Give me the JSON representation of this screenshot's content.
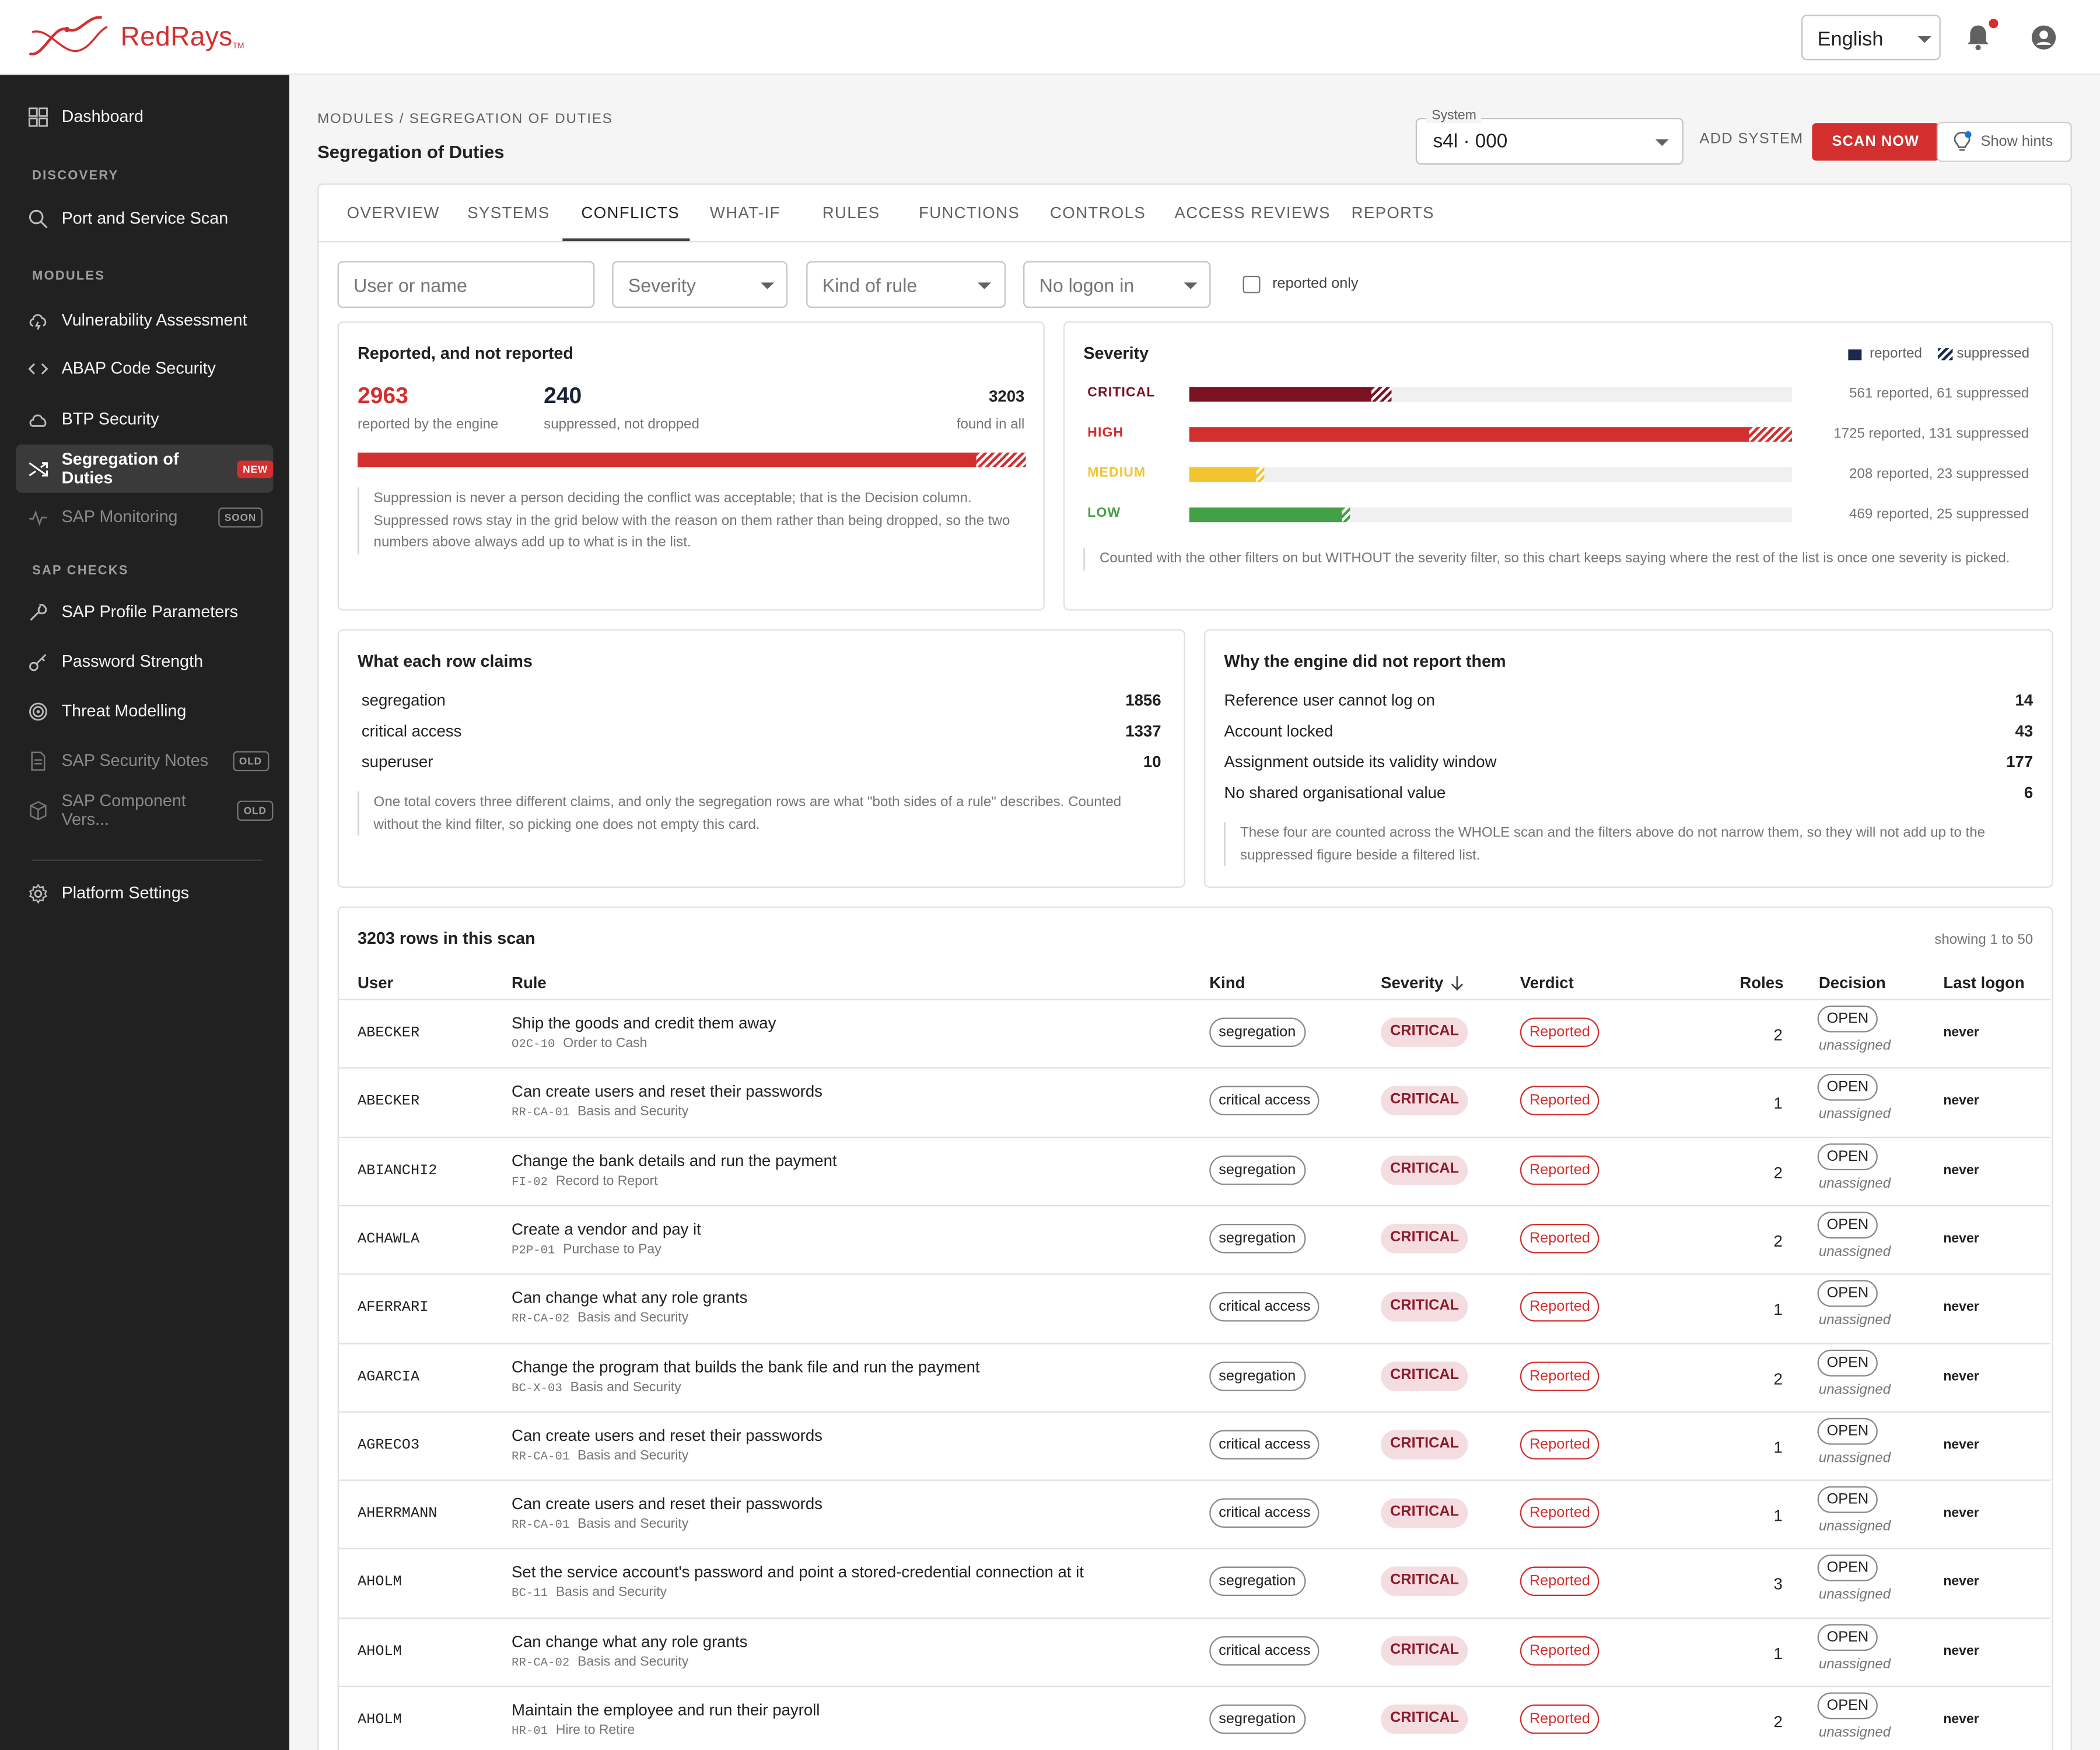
{
  "app": {
    "brand": "RedRays",
    "brand_tm": "TM",
    "language": "English"
  },
  "sidebar": {
    "items": [
      {
        "label": "Dashboard",
        "icon": "dashboard-icon"
      },
      {
        "label": "Port and Service Scan",
        "icon": "search-icon"
      },
      {
        "label": "Vulnerability Assessment",
        "icon": "cloud-bolt-icon"
      },
      {
        "label": "ABAP Code Security",
        "icon": "code-icon"
      },
      {
        "label": "BTP Security",
        "icon": "cloud-icon"
      },
      {
        "label": "Segregation of Duties",
        "icon": "shuffle-icon",
        "badge": "NEW"
      },
      {
        "label": "SAP Monitoring",
        "icon": "pulse-icon",
        "badge": "SOON"
      },
      {
        "label": "SAP Profile Parameters",
        "icon": "wrench-icon"
      },
      {
        "label": "Password Strength",
        "icon": "key-icon"
      },
      {
        "label": "Threat Modelling",
        "icon": "target-icon"
      },
      {
        "label": "SAP Security Notes",
        "icon": "document-icon",
        "badge": "OLD"
      },
      {
        "label": "SAP Component Vers...",
        "icon": "cube-icon",
        "badge": "OLD"
      },
      {
        "label": "Platform Settings",
        "icon": "gear-icon"
      }
    ],
    "sections": [
      "DISCOVERY",
      "MODULES",
      "SAP CHECKS"
    ]
  },
  "header": {
    "breadcrumb": "MODULES / SEGREGATION OF DUTIES",
    "title": "Segregation of Duties",
    "system_label": "System",
    "system_value": "s4l · 000",
    "add_system": "ADD SYSTEM",
    "scan_now": "SCAN NOW",
    "show_hints": "Show hints"
  },
  "tabs": [
    "OVERVIEW",
    "SYSTEMS",
    "CONFLICTS",
    "WHAT-IF",
    "RULES",
    "FUNCTIONS",
    "CONTROLS",
    "ACCESS REVIEWS",
    "REPORTS"
  ],
  "filters": {
    "user_placeholder": "User or name",
    "severity": "Severity",
    "kind": "Kind of rule",
    "logon": "No logon in",
    "reported_only": "reported only"
  },
  "summary": {
    "title": "Reported, and not reported",
    "reported": "2963",
    "reported_label": "reported by the engine",
    "suppressed": "240",
    "suppressed_label": "suppressed, not dropped",
    "total": "3203",
    "total_label": "found in all",
    "reported_fraction": 0.925,
    "note": "Suppression is never a person deciding the conflict was acceptable; that is the Decision column. Suppressed rows stay in the grid below with the reason on them rather than being dropped, so the two numbers above always add up to what is in the list."
  },
  "severity": {
    "title": "Severity",
    "legend_reported": "reported",
    "legend_suppressed": "suppressed",
    "rows": [
      {
        "label": "CRITICAL",
        "reported": 561,
        "suppressed": 61,
        "text": "561 reported, 61 suppressed",
        "color": "#7b1222"
      },
      {
        "label": "HIGH",
        "reported": 1725,
        "suppressed": 131,
        "text": "1725 reported, 131 suppressed",
        "color": "#d32f2f"
      },
      {
        "label": "MEDIUM",
        "reported": 208,
        "suppressed": 23,
        "text": "208 reported, 23 suppressed",
        "color": "#f4c430"
      },
      {
        "label": "LOW",
        "reported": 469,
        "suppressed": 25,
        "text": "469 reported, 25 suppressed",
        "color": "#43a047"
      }
    ],
    "note": "Counted with the other filters on but WITHOUT the severity filter, so this chart keeps saying where the rest of the list is once one severity is picked."
  },
  "claims": {
    "title": "What each row claims",
    "rows": [
      {
        "k": "segregation",
        "v": "1856"
      },
      {
        "k": "critical access",
        "v": "1337"
      },
      {
        "k": "superuser",
        "v": "10"
      }
    ],
    "note": "One total covers three different claims, and only the segregation rows are what \"both sides of a rule\" describes. Counted without the kind filter, so picking one does not empty this card."
  },
  "why": {
    "title": "Why the engine did not report them",
    "rows": [
      {
        "k": "Reference user cannot log on",
        "v": "14"
      },
      {
        "k": "Account locked",
        "v": "43"
      },
      {
        "k": "Assignment outside its validity window",
        "v": "177"
      },
      {
        "k": "No shared organisational value",
        "v": "6"
      }
    ],
    "note": "These four are counted across the WHOLE scan and the filters above do not narrow them, so they will not add up to the suppressed figure beside a filtered list."
  },
  "table": {
    "title": "3203 rows in this scan",
    "paging": "showing 1 to 50",
    "headers": [
      "User",
      "Rule",
      "Kind",
      "Severity",
      "Verdict",
      "Roles",
      "Decision",
      "Last logon"
    ],
    "rows": [
      {
        "user": "ABECKER",
        "rule": "Ship the goods and credit them away",
        "code": "O2C-10",
        "area": "Order to Cash",
        "kind": "segregation",
        "sev": "CRITICAL",
        "verdict": "Reported",
        "roles": "2",
        "decision": "OPEN",
        "assignee": "unassigned",
        "logon": "never"
      },
      {
        "user": "ABECKER",
        "rule": "Can create users and reset their passwords",
        "code": "RR-CA-01",
        "area": "Basis and Security",
        "kind": "critical access",
        "sev": "CRITICAL",
        "verdict": "Reported",
        "roles": "1",
        "decision": "OPEN",
        "assignee": "unassigned",
        "logon": "never"
      },
      {
        "user": "ABIANCHI2",
        "rule": "Change the bank details and run the payment",
        "code": "FI-02",
        "area": "Record to Report",
        "kind": "segregation",
        "sev": "CRITICAL",
        "verdict": "Reported",
        "roles": "2",
        "decision": "OPEN",
        "assignee": "unassigned",
        "logon": "never"
      },
      {
        "user": "ACHAWLA",
        "rule": "Create a vendor and pay it",
        "code": "P2P-01",
        "area": "Purchase to Pay",
        "kind": "segregation",
        "sev": "CRITICAL",
        "verdict": "Reported",
        "roles": "2",
        "decision": "OPEN",
        "assignee": "unassigned",
        "logon": "never"
      },
      {
        "user": "AFERRARI",
        "rule": "Can change what any role grants",
        "code": "RR-CA-02",
        "area": "Basis and Security",
        "kind": "critical access",
        "sev": "CRITICAL",
        "verdict": "Reported",
        "roles": "1",
        "decision": "OPEN",
        "assignee": "unassigned",
        "logon": "never"
      },
      {
        "user": "AGARCIA",
        "rule": "Change the program that builds the bank file and run the payment",
        "code": "BC-X-03",
        "area": "Basis and Security",
        "kind": "segregation",
        "sev": "CRITICAL",
        "verdict": "Reported",
        "roles": "2",
        "decision": "OPEN",
        "assignee": "unassigned",
        "logon": "never"
      },
      {
        "user": "AGRECO3",
        "rule": "Can create users and reset their passwords",
        "code": "RR-CA-01",
        "area": "Basis and Security",
        "kind": "critical access",
        "sev": "CRITICAL",
        "verdict": "Reported",
        "roles": "1",
        "decision": "OPEN",
        "assignee": "unassigned",
        "logon": "never"
      },
      {
        "user": "AHERRMANN",
        "rule": "Can create users and reset their passwords",
        "code": "RR-CA-01",
        "area": "Basis and Security",
        "kind": "critical access",
        "sev": "CRITICAL",
        "verdict": "Reported",
        "roles": "1",
        "decision": "OPEN",
        "assignee": "unassigned",
        "logon": "never"
      },
      {
        "user": "AHOLM",
        "rule": "Set the service account's password and point a stored-credential connection at it",
        "code": "BC-11",
        "area": "Basis and Security",
        "kind": "segregation",
        "sev": "CRITICAL",
        "verdict": "Reported",
        "roles": "3",
        "decision": "OPEN",
        "assignee": "unassigned",
        "logon": "never"
      },
      {
        "user": "AHOLM",
        "rule": "Can change what any role grants",
        "code": "RR-CA-02",
        "area": "Basis and Security",
        "kind": "critical access",
        "sev": "CRITICAL",
        "verdict": "Reported",
        "roles": "1",
        "decision": "OPEN",
        "assignee": "unassigned",
        "logon": "never"
      },
      {
        "user": "AHOLM",
        "rule": "Maintain the employee and run their payroll",
        "code": "HR-01",
        "area": "Hire to Retire",
        "kind": "segregation",
        "sev": "CRITICAL",
        "verdict": "Reported",
        "roles": "2",
        "decision": "OPEN",
        "assignee": "unassigned",
        "logon": "never"
      }
    ]
  }
}
